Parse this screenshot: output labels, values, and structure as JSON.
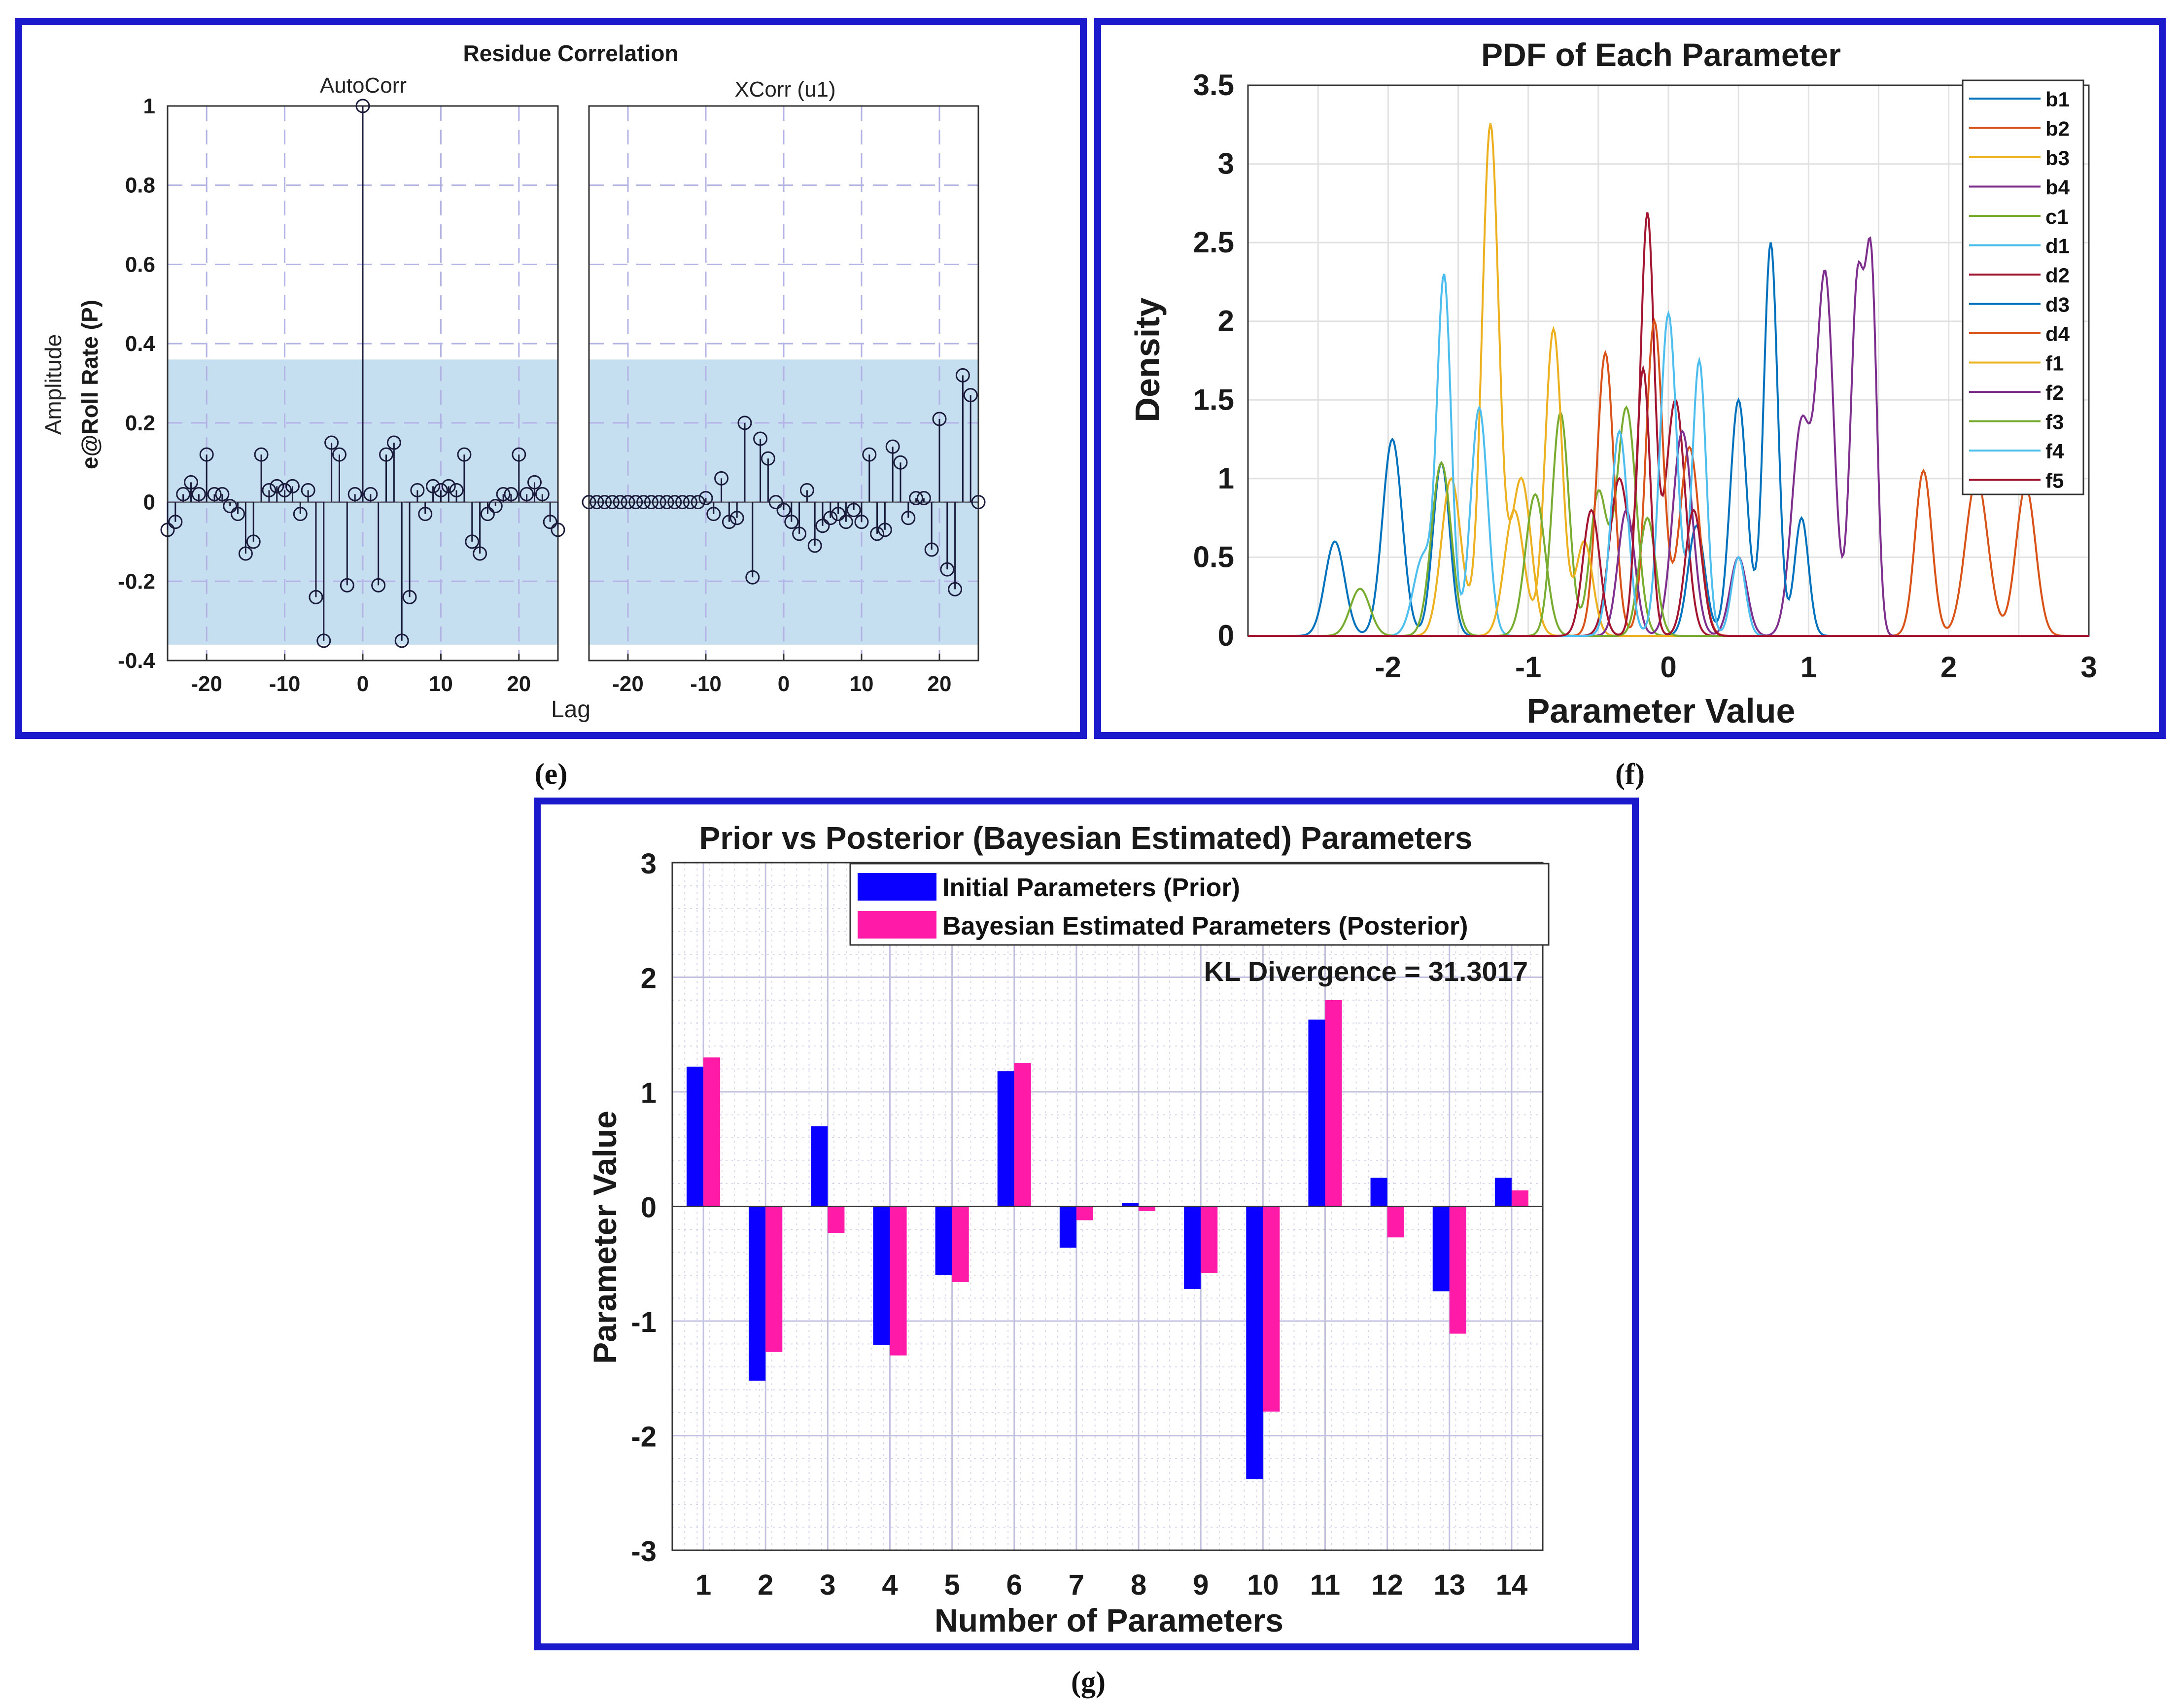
{
  "panels": {
    "e": {
      "caption": "(e)"
    },
    "f": {
      "caption": "(f)"
    },
    "g": {
      "caption": "(g)"
    }
  },
  "chart_data": [
    {
      "id": "e",
      "type": "stem",
      "title": "Residue Correlation",
      "ylabel": "Amplitude",
      "ylabel2": "e@Roll Rate (P)",
      "xlabel": "Lag",
      "confidence_band": [
        -0.36,
        0.36
      ],
      "ylim": [
        -0.4,
        1
      ],
      "yticks": [
        "-0.4",
        "-0.2",
        "0",
        "0.2",
        "0.4",
        "0.6",
        "0.8",
        "1"
      ],
      "ytick_values": [
        -0.4,
        -0.2,
        0,
        0.2,
        0.4,
        0.6,
        0.8,
        1
      ],
      "xlim": [
        -25,
        25
      ],
      "xticks": [
        "-20",
        "-10",
        "0",
        "10",
        "20"
      ],
      "xtick_values": [
        -20,
        -10,
        0,
        10,
        20
      ],
      "subplots": [
        {
          "title": "AutoCorr",
          "lags": [
            -25,
            -24,
            -23,
            -22,
            -21,
            -20,
            -19,
            -18,
            -17,
            -16,
            -15,
            -14,
            -13,
            -12,
            -11,
            -10,
            -9,
            -8,
            -7,
            -6,
            -5,
            -4,
            -3,
            -2,
            -1,
            0,
            1,
            2,
            3,
            4,
            5,
            6,
            7,
            8,
            9,
            10,
            11,
            12,
            13,
            14,
            15,
            16,
            17,
            18,
            19,
            20,
            21,
            22,
            23,
            24,
            25
          ],
          "values": [
            -0.07,
            -0.05,
            0.02,
            0.05,
            0.02,
            0.12,
            0.02,
            0.02,
            -0.01,
            -0.03,
            -0.13,
            -0.1,
            0.12,
            0.03,
            0.04,
            0.03,
            0.04,
            -0.03,
            0.03,
            -0.24,
            -0.35,
            0.15,
            0.12,
            -0.21,
            0.02,
            1.0,
            0.02,
            -0.21,
            0.12,
            0.15,
            -0.35,
            -0.24,
            0.03,
            -0.03,
            0.04,
            0.03,
            0.04,
            0.03,
            0.12,
            -0.1,
            -0.13,
            -0.03,
            -0.01,
            0.02,
            0.02,
            0.12,
            0.02,
            0.05,
            0.02,
            -0.05,
            -0.07
          ]
        },
        {
          "title": "XCorr (u1)",
          "lags": [
            -25,
            -24,
            -23,
            -22,
            -21,
            -20,
            -19,
            -18,
            -17,
            -16,
            -15,
            -14,
            -13,
            -12,
            -11,
            -10,
            -9,
            -8,
            -7,
            -6,
            -5,
            -4,
            -3,
            -2,
            -1,
            0,
            1,
            2,
            3,
            4,
            5,
            6,
            7,
            8,
            9,
            10,
            11,
            12,
            13,
            14,
            15,
            16,
            17,
            18,
            19,
            20,
            21,
            22,
            23,
            24,
            25
          ],
          "values": [
            0.0,
            0.0,
            0.0,
            0.0,
            0.0,
            0.0,
            0.0,
            0.0,
            0.0,
            0.0,
            0.0,
            0.0,
            0.0,
            0.0,
            0.0,
            0.01,
            -0.03,
            0.06,
            -0.05,
            -0.04,
            0.2,
            -0.19,
            0.16,
            0.11,
            0.0,
            -0.02,
            -0.05,
            -0.08,
            0.03,
            -0.11,
            -0.06,
            -0.04,
            -0.03,
            -0.05,
            -0.02,
            -0.05,
            0.12,
            -0.08,
            -0.07,
            0.14,
            0.1,
            -0.04,
            0.01,
            0.01,
            -0.12,
            0.21,
            -0.17,
            -0.22,
            0.32,
            0.27,
            0.0
          ]
        }
      ]
    },
    {
      "id": "f",
      "type": "line",
      "title": "PDF of Each Parameter",
      "xlabel": "Parameter Value",
      "ylabel": "Density",
      "xlim": [
        -3,
        3
      ],
      "ylim": [
        0,
        3.5
      ],
      "xticks": [
        "-2",
        "-1",
        "0",
        "1",
        "2",
        "3"
      ],
      "xtick_values": [
        -2,
        -1,
        0,
        1,
        2,
        3
      ],
      "yticks": [
        "0",
        "0.5",
        "1",
        "1.5",
        "2",
        "2.5",
        "3",
        "3.5"
      ],
      "ytick_values": [
        0,
        0.5,
        1,
        1.5,
        2,
        2.5,
        3,
        3.5
      ],
      "legend_position": "top-right",
      "series": [
        {
          "name": "b1",
          "color": "#0072bd",
          "peaks": [
            [
              -2.38,
              0.6,
              0.07
            ],
            [
              -1.97,
              1.25,
              0.07
            ],
            [
              -1.62,
              1.1,
              0.06
            ]
          ]
        },
        {
          "name": "b2",
          "color": "#d95319",
          "peaks": [
            [
              1.82,
              1.05,
              0.06
            ],
            [
              2.2,
              1.0,
              0.08
            ],
            [
              2.55,
              0.95,
              0.07
            ]
          ]
        },
        {
          "name": "b3",
          "color": "#edb120",
          "peaks": [
            [
              -1.27,
              3.25,
              0.06
            ],
            [
              -1.55,
              1.0,
              0.07
            ],
            [
              -1.05,
              1.0,
              0.07
            ]
          ]
        },
        {
          "name": "b4",
          "color": "#7e2f8e",
          "peaks": [
            [
              1.12,
              2.25,
              0.06
            ],
            [
              1.35,
              2.25,
              0.05
            ],
            [
              1.45,
              2.15,
              0.04
            ],
            [
              0.95,
              1.35,
              0.07
            ]
          ]
        },
        {
          "name": "c1",
          "color": "#77ac30",
          "peaks": [
            [
              -0.77,
              1.42,
              0.06
            ],
            [
              -0.3,
              1.45,
              0.07
            ],
            [
              -0.5,
              0.9,
              0.06
            ]
          ]
        },
        {
          "name": "d1",
          "color": "#4dbeee",
          "peaks": [
            [
              -1.6,
              2.25,
              0.05
            ],
            [
              -1.35,
              1.45,
              0.06
            ],
            [
              -1.75,
              0.5,
              0.07
            ]
          ]
        },
        {
          "name": "d2",
          "color": "#a2142f",
          "peaks": [
            [
              -0.15,
              2.65,
              0.05
            ],
            [
              0.05,
              1.5,
              0.07
            ],
            [
              -0.35,
              1.0,
              0.07
            ]
          ]
        },
        {
          "name": "d3",
          "color": "#0072bd",
          "peaks": [
            [
              0.73,
              2.5,
              0.05
            ],
            [
              0.5,
              1.5,
              0.06
            ],
            [
              0.95,
              0.75,
              0.05
            ],
            [
              0.2,
              0.7,
              0.06
            ]
          ]
        },
        {
          "name": "d4",
          "color": "#d95319",
          "peaks": [
            [
              -0.45,
              1.8,
              0.06
            ],
            [
              -0.1,
              2.0,
              0.06
            ],
            [
              0.15,
              1.2,
              0.07
            ]
          ]
        },
        {
          "name": "f1",
          "color": "#edb120",
          "peaks": [
            [
              -0.82,
              1.95,
              0.06
            ],
            [
              -1.1,
              0.8,
              0.07
            ],
            [
              -0.6,
              0.6,
              0.06
            ]
          ]
        },
        {
          "name": "f2",
          "color": "#7e2f8e",
          "peaks": [
            [
              -0.3,
              0.8,
              0.06
            ],
            [
              0.1,
              1.3,
              0.07
            ],
            [
              0.5,
              0.5,
              0.06
            ]
          ]
        },
        {
          "name": "f3",
          "color": "#77ac30",
          "peaks": [
            [
              -1.62,
              1.1,
              0.07
            ],
            [
              -0.95,
              0.9,
              0.07
            ],
            [
              -2.2,
              0.3,
              0.07
            ],
            [
              -0.15,
              0.75,
              0.06
            ]
          ]
        },
        {
          "name": "f4",
          "color": "#4dbeee",
          "peaks": [
            [
              0.0,
              2.05,
              0.06
            ],
            [
              0.22,
              1.75,
              0.05
            ],
            [
              -0.35,
              1.3,
              0.06
            ],
            [
              0.5,
              0.5,
              0.05
            ]
          ]
        },
        {
          "name": "f5",
          "color": "#a2142f",
          "peaks": [
            [
              -0.18,
              1.7,
              0.05
            ],
            [
              -0.55,
              0.8,
              0.06
            ],
            [
              0.18,
              0.8,
              0.06
            ]
          ]
        }
      ]
    },
    {
      "id": "g",
      "type": "bar",
      "title": "Prior vs Posterior (Bayesian Estimated) Parameters",
      "xlabel": "Number of Parameters",
      "ylabel": "Parameter Value",
      "annotation": "KL Divergence = 31.3017",
      "ylim": [
        -3,
        3
      ],
      "yticks": [
        "-3",
        "-2",
        "-1",
        "0",
        "1",
        "2",
        "3"
      ],
      "ytick_values": [
        -3,
        -2,
        -1,
        0,
        1,
        2,
        3
      ],
      "categories": [
        "1",
        "2",
        "3",
        "4",
        "5",
        "6",
        "7",
        "8",
        "9",
        "10",
        "11",
        "12",
        "13",
        "14"
      ],
      "series": [
        {
          "name": "Initial Parameters (Prior)",
          "color": "#0a00ff",
          "values": [
            1.22,
            -1.52,
            0.7,
            -1.21,
            -0.6,
            1.18,
            -0.36,
            0.03,
            -0.72,
            -2.38,
            1.63,
            0.25,
            -0.74,
            0.25
          ]
        },
        {
          "name": "Bayesian Estimated Parameters (Posterior)",
          "color": "#ff1aa8",
          "values": [
            1.3,
            -1.27,
            -0.23,
            -1.3,
            -0.66,
            1.25,
            -0.12,
            -0.04,
            -0.58,
            -1.79,
            1.8,
            -0.27,
            -1.11,
            0.14
          ]
        }
      ]
    }
  ],
  "colors": {
    "frame": "#1a1acc",
    "band": "#c6dff0",
    "stem": "#1a1a3a"
  }
}
